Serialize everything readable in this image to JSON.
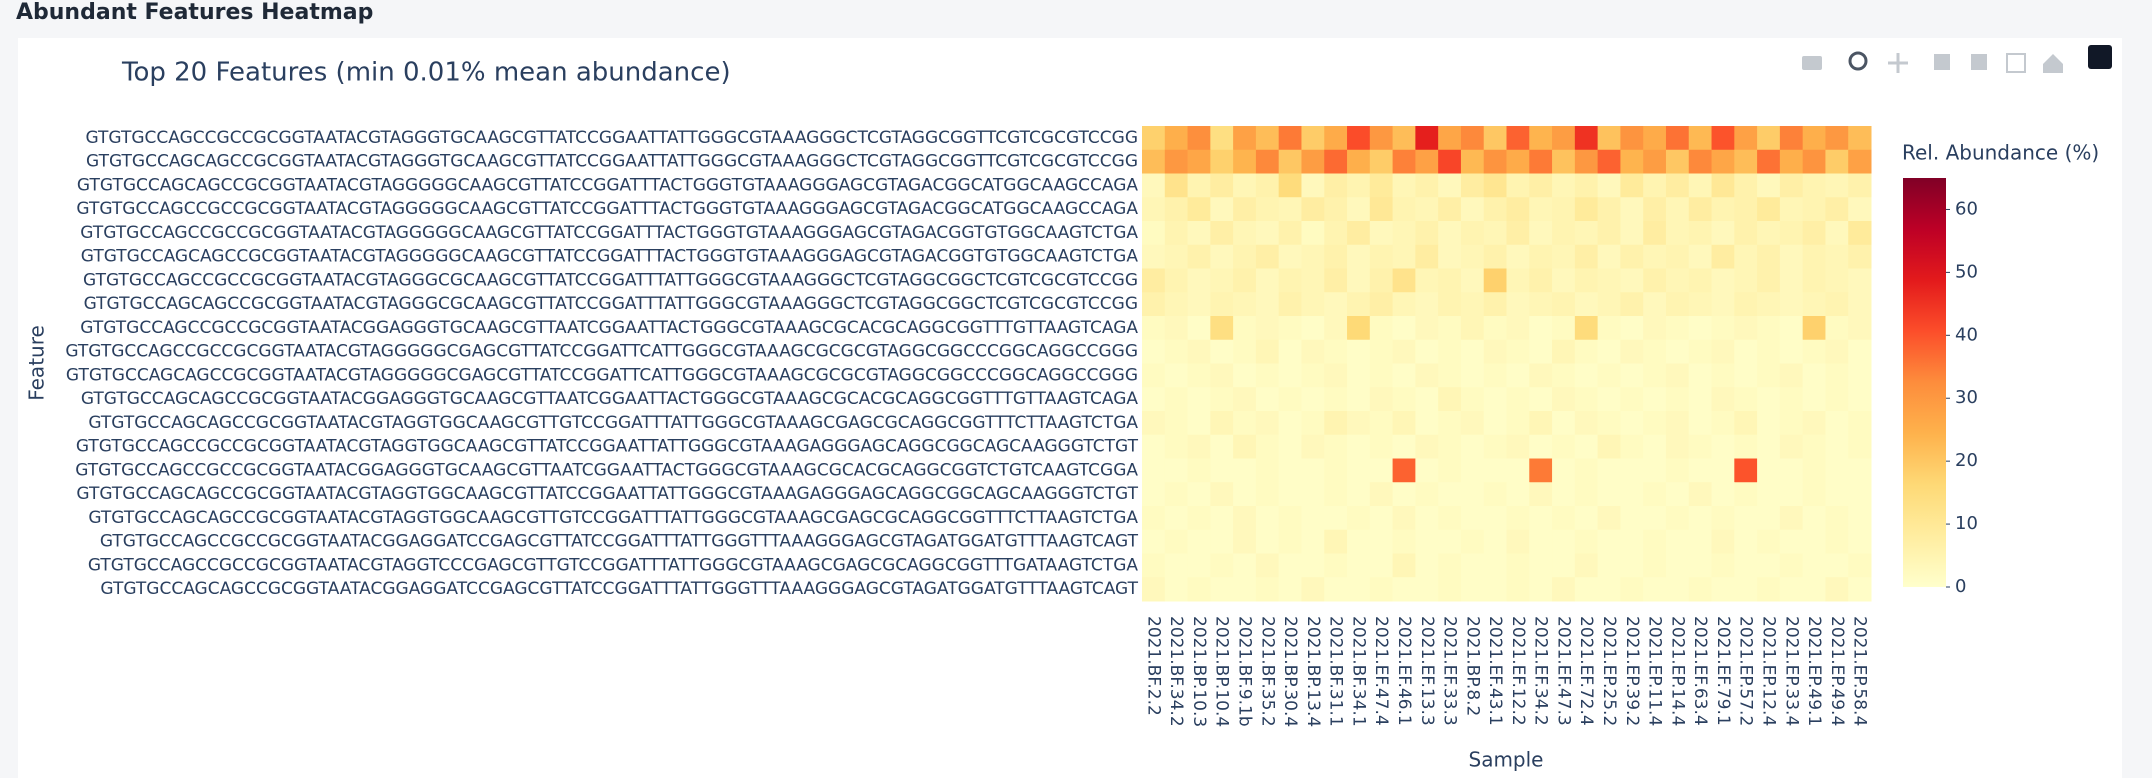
{
  "header": {
    "title": "Abundant Features Heatmap"
  },
  "chart_data": {
    "type": "heatmap",
    "title": "Top 20 Features (min 0.01% mean abundance)",
    "x_label": "Sample",
    "y_label": "Feature",
    "colorbar_title": "Rel. Abundance (%)",
    "zlim": [
      0,
      65
    ],
    "zticks": [
      0,
      10,
      20,
      30,
      40,
      50,
      60
    ],
    "colorscale": [
      "#ffffcc",
      "#ffeda0",
      "#fed976",
      "#feb24c",
      "#fd8d3c",
      "#fc4e2a",
      "#e31a1c",
      "#bd0026",
      "#800026"
    ],
    "categories": [
      "2021.BF.2.2",
      "2021.BF.34.2",
      "2021.BP.10.3",
      "2021.BP.10.4",
      "2021.BF.9.1b",
      "2021.BF.35.2",
      "2021.BP.30.4",
      "2021.BP.13.4",
      "2021.BF.31.1",
      "2021.BF.34.1",
      "2021.EF.47.4",
      "2021.EF.46.1",
      "2021.EF.13.3",
      "2021.EF.33.3",
      "2021.BP.8.2",
      "2021.EF.43.1",
      "2021.EF.12.2",
      "2021.EF.34.2",
      "2021.EF.47.3",
      "2021.EF.72.4",
      "2021.EP.25.2",
      "2021.EP.39.2",
      "2021.EP.11.4",
      "2021.EP.14.4",
      "2021.EF.63.4",
      "2021.EF.79.1",
      "2021.EP.57.2",
      "2021.EP.12.4",
      "2021.EP.33.4",
      "2021.EP.49.1",
      "2021.EP.49.4",
      "2021.EP.58.4"
    ],
    "features": [
      "GTGTGCCAGCCGCCGCGGTAATACGTAGGGTGCAAGCGTTATCCGGAATTATTGGGCGTAAAGGGCTCGTAGGCGGTTCGTCGCGTCCGG",
      "GTGTGCCAGCAGCCGCGGTAATACGTAGGGTGCAAGCGTTATCCGGAATTATTGGGCGTAAAGGGCTCGTAGGCGGTTCGTCGCGTCCGG",
      "GTGTGCCAGCAGCCGCGGTAATACGTAGGGGGCAAGCGTTATCCGGATTTACTGGGTGTAAAGGGAGCGTAGACGGCATGGCAAGCCAGA",
      "GTGTGCCAGCCGCCGCGGTAATACGTAGGGGGCAAGCGTTATCCGGATTTACTGGGTGTAAAGGGAGCGTAGACGGCATGGCAAGCCAGA",
      "GTGTGCCAGCCGCCGCGGTAATACGTAGGGGGCAAGCGTTATCCGGATTTACTGGGTGTAAAGGGAGCGTAGACGGTGTGGCAAGTCTGA",
      "GTGTGCCAGCAGCCGCGGTAATACGTAGGGGGCAAGCGTTATCCGGATTTACTGGGTGTAAAGGGAGCGTAGACGGTGTGGCAAGTCTGA",
      "GTGTGCCAGCCGCCGCGGTAATACGTAGGGCGCAAGCGTTATCCGGATTTATTGGGCGTAAAGGGCTCGTAGGCGGCTCGTCGCGTCCGG",
      "GTGTGCCAGCAGCCGCGGTAATACGTAGGGCGCAAGCGTTATCCGGATTTATTGGGCGTAAAGGGCTCGTAGGCGGCTCGTCGCGTCCGG",
      "GTGTGCCAGCCGCCGCGGTAATACGGAGGGTGCAAGCGTTAATCGGAATTACTGGGCGTAAAGCGCACGCAGGCGGTTTGTTAAGTCAGA",
      "GTGTGCCAGCCGCCGCGGTAATACGTAGGGGGCGAGCGTTATCCGGATTCATTGGGCGTAAAGCGCGCGTAGGCGGCCCGGCAGGCCGGG",
      "GTGTGCCAGCAGCCGCGGTAATACGTAGGGGGCGAGCGTTATCCGGATTCATTGGGCGTAAAGCGCGCGTAGGCGGCCCGGCAGGCCGGG",
      "GTGTGCCAGCAGCCGCGGTAATACGGAGGGTGCAAGCGTTAATCGGAATTACTGGGCGTAAAGCGCACGCAGGCGGTTTGTTAAGTCAGA",
      "GTGTGCCAGCAGCCGCGGTAATACGTAGGTGGCAAGCGTTGTCCGGATTTATTGGGCGTAAAGCGAGCGCAGGCGGTTTCTTAAGTCTGA",
      "GTGTGCCAGCCGCCGCGGTAATACGTAGGTGGCAAGCGTTATCCGGAATTATTGGGCGTAAAGAGGGAGCAGGCGGCAGCAAGGGTCTGT",
      "GTGTGCCAGCCGCCGCGGTAATACGGAGGGTGCAAGCGTTAATCGGAATTACTGGGCGTAAAGCGCACGCAGGCGGTCTGTCAAGTCGGA",
      "GTGTGCCAGCAGCCGCGGTAATACGTAGGTGGCAAGCGTTATCCGGAATTATTGGGCGTAAAGAGGGAGCAGGCGGCAGCAAGGGTCTGT",
      "GTGTGCCAGCAGCCGCGGTAATACGTAGGTGGCAAGCGTTGTCCGGATTTATTGGGCGTAAAGCGAGCGCAGGCGGTTTCTTAAGTCTGA",
      "GTGTGCCAGCCGCCGCGGTAATACGGAGGATCCGAGCGTTATCCGGATTTATTGGGTTTAAAGGGAGCGTAGATGGATGTTTAAGTCAGT",
      "GTGTGCCAGCCGCCGCGGTAATACGTAGGTCCCGAGCGTTGTCCGGATTTATTGGGCGTAAAGCGAGCGCAGGCGGTTTGATAAGTCTGA",
      "GTGTGCCAGCAGCCGCGGTAATACGGAGGATCCGAGCGTTATCCGGATTTATTGGGTTTAAAGGGAGCGTAGATGGATGTTTAAGTCAGT"
    ],
    "z": [
      [
        18,
        25,
        32,
        14,
        28,
        22,
        35,
        19,
        26,
        41,
        30,
        22,
        48,
        27,
        33,
        20,
        38,
        24,
        29,
        45,
        21,
        31,
        26,
        36,
        23,
        40,
        28,
        19,
        34,
        25,
        30,
        22
      ],
      [
        22,
        30,
        27,
        18,
        24,
        33,
        20,
        29,
        37,
        25,
        19,
        34,
        28,
        42,
        23,
        31,
        26,
        35,
        21,
        30,
        38,
        24,
        29,
        20,
        33,
        27,
        22,
        36,
        25,
        31,
        19,
        28
      ],
      [
        3,
        12,
        5,
        8,
        4,
        6,
        15,
        3,
        7,
        5,
        9,
        4,
        6,
        3,
        8,
        11,
        5,
        7,
        4,
        6,
        3,
        9,
        5,
        8,
        4,
        10,
        6,
        3,
        7,
        5,
        4,
        6
      ],
      [
        4,
        6,
        9,
        3,
        7,
        5,
        4,
        8,
        6,
        3,
        10,
        5,
        4,
        7,
        3,
        6,
        8,
        4,
        5,
        9,
        6,
        3,
        7,
        4,
        8,
        5,
        6,
        9,
        4,
        5,
        7,
        3
      ],
      [
        2,
        5,
        3,
        7,
        4,
        3,
        6,
        2,
        5,
        8,
        3,
        4,
        6,
        3,
        5,
        4,
        7,
        3,
        5,
        4,
        6,
        3,
        8,
        4,
        5,
        3,
        6,
        4,
        5,
        7,
        3,
        9
      ],
      [
        3,
        4,
        6,
        3,
        5,
        7,
        3,
        4,
        6,
        3,
        5,
        4,
        8,
        3,
        4,
        6,
        3,
        5,
        4,
        7,
        3,
        6,
        4,
        5,
        3,
        8,
        4,
        6,
        3,
        5,
        4,
        6
      ],
      [
        8,
        5,
        3,
        4,
        6,
        3,
        5,
        4,
        7,
        3,
        6,
        12,
        4,
        5,
        3,
        18,
        4,
        6,
        3,
        5,
        4,
        3,
        6,
        4,
        5,
        3,
        4,
        6,
        3,
        5,
        4,
        3
      ],
      [
        6,
        4,
        3,
        5,
        4,
        3,
        6,
        4,
        3,
        5,
        7,
        4,
        3,
        5,
        4,
        6,
        3,
        4,
        5,
        3,
        4,
        6,
        3,
        5,
        4,
        3,
        5,
        4,
        3,
        4,
        5,
        3
      ],
      [
        2,
        3,
        1,
        14,
        2,
        3,
        2,
        1,
        3,
        16,
        2,
        1,
        3,
        2,
        4,
        2,
        3,
        1,
        2,
        15,
        2,
        1,
        3,
        2,
        1,
        2,
        3,
        2,
        1,
        18,
        2,
        3
      ],
      [
        1,
        2,
        3,
        1,
        2,
        4,
        1,
        3,
        2,
        1,
        2,
        3,
        1,
        2,
        1,
        3,
        2,
        1,
        4,
        2,
        1,
        3,
        2,
        1,
        2,
        3,
        1,
        2,
        1,
        2,
        3,
        1
      ],
      [
        2,
        1,
        2,
        3,
        1,
        2,
        1,
        2,
        3,
        1,
        2,
        1,
        3,
        2,
        1,
        2,
        1,
        3,
        2,
        1,
        2,
        1,
        2,
        3,
        1,
        2,
        1,
        2,
        3,
        1,
        2,
        1
      ],
      [
        1,
        2,
        1,
        2,
        3,
        1,
        2,
        1,
        2,
        1,
        3,
        2,
        1,
        4,
        2,
        1,
        2,
        1,
        3,
        2,
        1,
        2,
        1,
        2,
        1,
        3,
        2,
        1,
        2,
        1,
        2,
        1
      ],
      [
        3,
        2,
        1,
        4,
        2,
        3,
        1,
        2,
        5,
        3,
        2,
        4,
        1,
        2,
        3,
        1,
        2,
        4,
        1,
        3,
        2,
        1,
        2,
        3,
        1,
        2,
        4,
        1,
        2,
        3,
        1,
        2
      ],
      [
        1,
        2,
        3,
        1,
        4,
        2,
        1,
        3,
        2,
        1,
        2,
        1,
        3,
        2,
        1,
        2,
        3,
        1,
        2,
        1,
        4,
        2,
        1,
        3,
        2,
        1,
        2,
        1,
        3,
        2,
        1,
        2
      ],
      [
        1,
        1,
        2,
        1,
        1,
        2,
        1,
        1,
        2,
        1,
        1,
        38,
        1,
        2,
        1,
        1,
        1,
        35,
        1,
        2,
        1,
        1,
        1,
        2,
        1,
        1,
        40,
        1,
        1,
        2,
        1,
        1
      ],
      [
        1,
        2,
        1,
        3,
        1,
        2,
        1,
        1,
        2,
        1,
        3,
        1,
        2,
        1,
        1,
        2,
        1,
        3,
        1,
        2,
        1,
        1,
        2,
        1,
        3,
        1,
        2,
        1,
        1,
        2,
        1,
        1
      ],
      [
        2,
        1,
        2,
        1,
        3,
        1,
        2,
        1,
        1,
        2,
        1,
        3,
        1,
        2,
        1,
        1,
        2,
        1,
        2,
        1,
        3,
        1,
        1,
        2,
        1,
        2,
        1,
        1,
        3,
        1,
        2,
        1
      ],
      [
        1,
        2,
        1,
        1,
        3,
        1,
        2,
        1,
        4,
        1,
        1,
        2,
        1,
        1,
        2,
        1,
        3,
        1,
        1,
        2,
        1,
        1,
        2,
        1,
        1,
        3,
        1,
        2,
        1,
        1,
        2,
        1
      ],
      [
        2,
        1,
        1,
        2,
        1,
        3,
        1,
        1,
        2,
        1,
        1,
        4,
        1,
        2,
        1,
        1,
        2,
        1,
        1,
        3,
        1,
        1,
        2,
        1,
        1,
        2,
        1,
        1,
        2,
        1,
        1,
        2
      ],
      [
        3,
        1,
        2,
        1,
        1,
        2,
        1,
        3,
        1,
        1,
        2,
        1,
        1,
        2,
        1,
        1,
        2,
        1,
        3,
        1,
        1,
        2,
        1,
        1,
        2,
        1,
        1,
        2,
        1,
        1,
        3,
        1
      ]
    ]
  }
}
